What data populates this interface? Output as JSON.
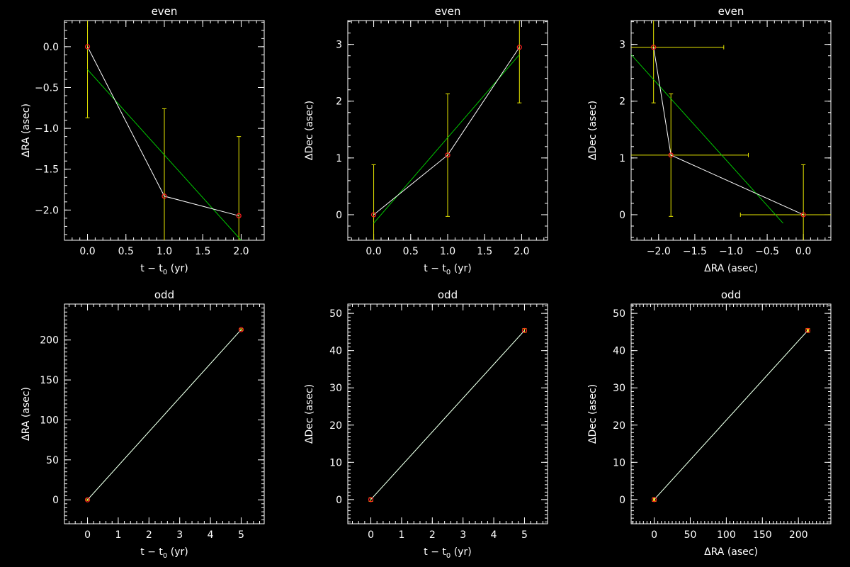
{
  "colors": {
    "background": "#000000",
    "axes": "#ffffff",
    "data_line": "#ffffff",
    "fit_line": "#00c800",
    "points": "#ff2020",
    "error_bars": "#e8e800"
  },
  "chart_data": [
    {
      "type": "line",
      "title": "even",
      "xlabel": {
        "pre": "t − t",
        "sub": "0",
        "post": " (yr)"
      },
      "ylabel": "ΔRA (asec)",
      "xlim": [
        -0.3,
        2.3
      ],
      "ylim": [
        -2.37,
        0.32
      ],
      "xticks": [
        0,
        0.5,
        1,
        1.5,
        2
      ],
      "xtick_labels": [
        "0.0",
        "0.5",
        "1.0",
        "1.5",
        "2.0"
      ],
      "yticks": [
        0,
        -0.5,
        -1,
        -1.5,
        -2
      ],
      "ytick_labels": [
        "0.0",
        "−0.5",
        "−1.0",
        "−1.5",
        "−2.0"
      ],
      "x_minor_step": 0.1,
      "y_minor_step": 0.1,
      "points": [
        {
          "x": 0,
          "y": 0,
          "yerr": 0.87
        },
        {
          "x": 1,
          "y": -1.83,
          "yerr": 1.07
        },
        {
          "x": 1.97,
          "y": -2.07,
          "yerr": 0.97
        }
      ],
      "fit": [
        [
          0,
          -0.28
        ],
        [
          2,
          -2.37
        ]
      ]
    },
    {
      "type": "line",
      "title": "even",
      "xlabel": {
        "pre": "t − t",
        "sub": "0",
        "post": " (yr)"
      },
      "ylabel": "ΔDec (asec)",
      "xlim": [
        -0.35,
        2.35
      ],
      "ylim": [
        -0.45,
        3.42
      ],
      "xticks": [
        0,
        0.5,
        1,
        1.5,
        2
      ],
      "xtick_labels": [
        "0.0",
        "0.5",
        "1.0",
        "1.5",
        "2.0"
      ],
      "yticks": [
        0,
        1,
        2,
        3
      ],
      "ytick_labels": [
        "0",
        "1",
        "2",
        "3"
      ],
      "x_minor_step": 0.1,
      "y_minor_step": 0.2,
      "points": [
        {
          "x": 0,
          "y": 0,
          "yerr": 0.88
        },
        {
          "x": 1,
          "y": 1.05,
          "yerr": 1.08
        },
        {
          "x": 1.97,
          "y": 2.95,
          "yerr": 0.98
        }
      ],
      "fit": [
        [
          0,
          -0.15
        ],
        [
          1.97,
          2.82
        ]
      ]
    },
    {
      "type": "line",
      "title": "even",
      "xlabel": {
        "pre": "ΔRA (asec)",
        "sub": "",
        "post": ""
      },
      "ylabel": "ΔDec (asec)",
      "xlim": [
        -2.38,
        0.38
      ],
      "ylim": [
        -0.45,
        3.42
      ],
      "xticks": [
        -2,
        -1.5,
        -1,
        -0.5,
        0
      ],
      "xtick_labels": [
        "−2.0",
        "−1.5",
        "−1.0",
        "−0.5",
        "0.0"
      ],
      "yticks": [
        0,
        1,
        2,
        3
      ],
      "ytick_labels": [
        "0",
        "1",
        "2",
        "3"
      ],
      "x_minor_step": 0.1,
      "y_minor_step": 0.2,
      "points": [
        {
          "x": -2.07,
          "y": 2.95,
          "yerr": 0.98,
          "xerr": 0.97
        },
        {
          "x": -1.83,
          "y": 1.05,
          "yerr": 1.08,
          "xerr": 1.07
        },
        {
          "x": 0,
          "y": 0,
          "yerr": 0.88,
          "xerr": 0.87
        }
      ],
      "fit": [
        [
          -2.38,
          2.82
        ],
        [
          -0.28,
          -0.15
        ]
      ]
    },
    {
      "type": "line",
      "title": "odd",
      "xlabel": {
        "pre": "t − t",
        "sub": "0",
        "post": " (yr)"
      },
      "ylabel": "ΔRA (asec)",
      "xlim": [
        -0.75,
        5.75
      ],
      "ylim": [
        -30,
        245
      ],
      "xticks": [
        0,
        1,
        2,
        3,
        4,
        5
      ],
      "xtick_labels": [
        "0",
        "1",
        "2",
        "3",
        "4",
        "5"
      ],
      "yticks": [
        0,
        50,
        100,
        150,
        200
      ],
      "ytick_labels": [
        "0",
        "50",
        "100",
        "150",
        "200"
      ],
      "x_minor_step": 0.2,
      "y_minor_step": 5,
      "points": [
        {
          "x": 0,
          "y": 0,
          "yerr": 1
        },
        {
          "x": 5,
          "y": 213,
          "yerr": 1
        }
      ],
      "fit": [
        [
          0,
          0
        ],
        [
          5,
          213
        ]
      ]
    },
    {
      "type": "line",
      "title": "odd",
      "xlabel": {
        "pre": "t − t",
        "sub": "0",
        "post": " (yr)"
      },
      "ylabel": "ΔDec (asec)",
      "xlim": [
        -0.75,
        5.75
      ],
      "ylim": [
        -6.5,
        52.5
      ],
      "xticks": [
        0,
        1,
        2,
        3,
        4,
        5
      ],
      "xtick_labels": [
        "0",
        "1",
        "2",
        "3",
        "4",
        "5"
      ],
      "yticks": [
        0,
        10,
        20,
        30,
        40,
        50
      ],
      "ytick_labels": [
        "0",
        "10",
        "20",
        "30",
        "40",
        "50"
      ],
      "x_minor_step": 0.2,
      "y_minor_step": 1,
      "points": [
        {
          "x": 0,
          "y": 0,
          "yerr": 0.5
        },
        {
          "x": 5,
          "y": 45.4,
          "yerr": 0.5
        }
      ],
      "fit": [
        [
          0,
          0
        ],
        [
          5,
          45.4
        ]
      ]
    },
    {
      "type": "line",
      "title": "odd",
      "xlabel": {
        "pre": "ΔRA (asec)",
        "sub": "",
        "post": ""
      },
      "ylabel": "ΔDec (asec)",
      "xlim": [
        -32,
        245
      ],
      "ylim": [
        -6.5,
        52.5
      ],
      "xticks": [
        0,
        50,
        100,
        150,
        200
      ],
      "xtick_labels": [
        "0",
        "50",
        "100",
        "150",
        "200"
      ],
      "yticks": [
        0,
        10,
        20,
        30,
        40,
        50
      ],
      "ytick_labels": [
        "0",
        "10",
        "20",
        "30",
        "40",
        "50"
      ],
      "x_minor_step": 5,
      "y_minor_step": 1,
      "points": [
        {
          "x": 0,
          "y": 0,
          "yerr": 0.5,
          "xerr": 1
        },
        {
          "x": 213,
          "y": 45.4,
          "yerr": 0.5,
          "xerr": 1
        }
      ],
      "fit": [
        [
          0,
          0
        ],
        [
          213,
          45.4
        ]
      ]
    }
  ]
}
